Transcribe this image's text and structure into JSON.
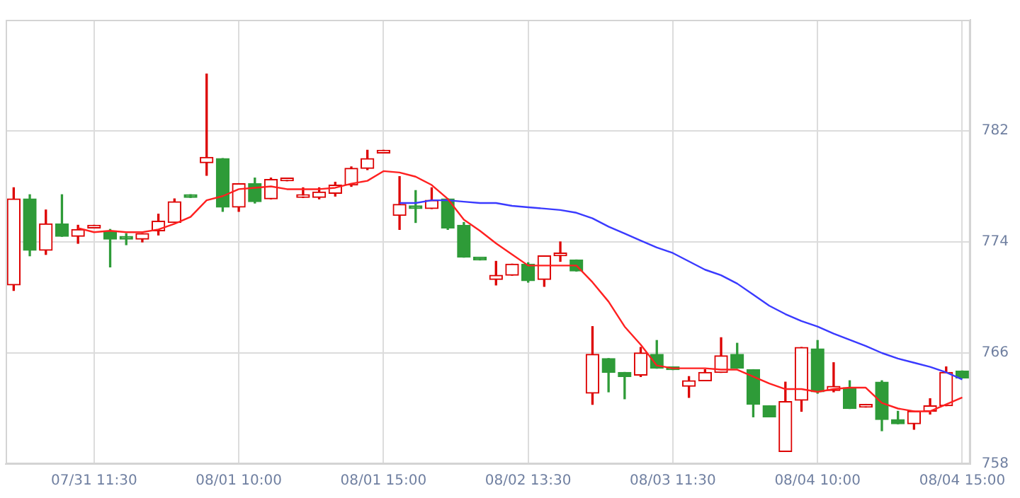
{
  "chart_data": {
    "type": "candlestick",
    "categories": [
      null,
      null,
      null,
      null,
      null,
      "07/31 11:30",
      null,
      null,
      null,
      null,
      null,
      null,
      null,
      null,
      "08/01 10:00",
      null,
      null,
      null,
      null,
      null,
      null,
      null,
      null,
      "08/01 15:00",
      null,
      null,
      null,
      null,
      null,
      null,
      null,
      null,
      "08/02 13:30",
      null,
      null,
      null,
      null,
      null,
      null,
      null,
      null,
      "08/03 11:30",
      null,
      null,
      null,
      null,
      null,
      null,
      null,
      null,
      "08/04 10:00",
      null,
      null,
      null,
      null,
      null,
      null,
      null,
      null,
      "08/04 15:00"
    ],
    "ohlc": [
      [
        770.9,
        777.9,
        770.5,
        777.1
      ],
      [
        777.1,
        777.4,
        773.0,
        773.4
      ],
      [
        773.4,
        776.3,
        773.1,
        775.3
      ],
      [
        775.3,
        777.4,
        774.4,
        774.4
      ],
      [
        774.4,
        775.2,
        773.9,
        774.9
      ],
      [
        775.0,
        775.2,
        775.0,
        775.1
      ],
      [
        774.8,
        774.9,
        772.2,
        774.2
      ],
      [
        774.4,
        774.6,
        773.8,
        774.2
      ],
      [
        774.2,
        774.6,
        774.0,
        774.6
      ],
      [
        774.8,
        776.0,
        774.5,
        775.5
      ],
      [
        775.4,
        777.1,
        775.4,
        776.9
      ],
      [
        777.4,
        777.4,
        777.2,
        777.2
      ],
      [
        779.7,
        786.1,
        778.8,
        780.1
      ],
      [
        780.0,
        780.0,
        776.2,
        776.5
      ],
      [
        776.5,
        778.2,
        776.2,
        778.2
      ],
      [
        778.2,
        778.6,
        776.8,
        776.9
      ],
      [
        777.1,
        778.6,
        777.1,
        778.5
      ],
      [
        778.4,
        778.5,
        778.4,
        778.5
      ],
      [
        777.2,
        777.9,
        777.2,
        777.3
      ],
      [
        777.2,
        777.9,
        777.1,
        777.6
      ],
      [
        777.5,
        778.3,
        777.3,
        778.1
      ],
      [
        778.1,
        779.4,
        778.0,
        779.3
      ],
      [
        779.3,
        780.6,
        779.2,
        780.0
      ],
      [
        780.4,
        780.6,
        780.4,
        780.6
      ],
      [
        775.9,
        778.7,
        774.9,
        776.7
      ],
      [
        776.6,
        777.7,
        775.4,
        776.4
      ],
      [
        776.4,
        777.9,
        776.4,
        777.0
      ],
      [
        777.1,
        777.1,
        774.9,
        775.0
      ],
      [
        775.2,
        775.4,
        772.9,
        772.9
      ],
      [
        772.8,
        772.8,
        772.7,
        772.7
      ],
      [
        771.3,
        772.6,
        770.9,
        771.6
      ],
      [
        771.6,
        772.4,
        771.6,
        772.4
      ],
      [
        772.4,
        772.5,
        771.1,
        771.2
      ],
      [
        771.3,
        773.0,
        770.8,
        773.0
      ],
      [
        773.0,
        774.0,
        772.6,
        773.1
      ],
      [
        772.7,
        772.7,
        771.9,
        771.9
      ],
      [
        763.1,
        767.9,
        762.3,
        765.9
      ],
      [
        765.6,
        765.6,
        763.2,
        764.6
      ],
      [
        764.6,
        764.6,
        762.7,
        764.3
      ],
      [
        764.4,
        766.4,
        764.3,
        766.0
      ],
      [
        765.9,
        766.9,
        764.9,
        764.9
      ],
      [
        764.9,
        765.0,
        764.8,
        764.8
      ],
      [
        763.6,
        764.3,
        762.8,
        764.0
      ],
      [
        764.0,
        764.8,
        764.0,
        764.6
      ],
      [
        764.6,
        767.1,
        764.6,
        765.8
      ],
      [
        765.9,
        766.7,
        764.9,
        764.9
      ],
      [
        764.8,
        764.8,
        761.4,
        762.3
      ],
      [
        762.2,
        762.2,
        761.4,
        761.4
      ],
      [
        758.9,
        763.9,
        758.9,
        762.5
      ],
      [
        762.6,
        766.4,
        761.8,
        766.4
      ],
      [
        766.3,
        766.9,
        763.1,
        763.2
      ],
      [
        763.3,
        765.3,
        763.2,
        763.6
      ],
      [
        763.5,
        764.0,
        762.0,
        762.0
      ],
      [
        762.1,
        762.3,
        762.1,
        762.3
      ],
      [
        763.9,
        764.0,
        760.4,
        761.2
      ],
      [
        761.2,
        761.8,
        760.9,
        760.9
      ],
      [
        760.9,
        761.8,
        760.5,
        761.8
      ],
      [
        761.8,
        762.7,
        761.6,
        762.2
      ],
      [
        762.2,
        765.0,
        762.2,
        764.6
      ],
      [
        764.7,
        764.7,
        764.2,
        764.2
      ]
    ],
    "colors": [
      "#dd0000",
      "#2e9b38",
      "#dd0000",
      "#2e9b38",
      "#dd0000",
      "#dd0000",
      "#2e9b38",
      "#2e9b38",
      "#dd0000",
      "#dd0000",
      "#dd0000",
      "#2e9b38",
      "#dd0000",
      "#2e9b38",
      "#dd0000",
      "#2e9b38",
      "#dd0000",
      "#dd0000",
      "#dd0000",
      "#dd0000",
      "#dd0000",
      "#dd0000",
      "#dd0000",
      "#dd0000",
      "#dd0000",
      "#2e9b38",
      "#dd0000",
      "#2e9b38",
      "#2e9b38",
      "#2e9b38",
      "#dd0000",
      "#dd0000",
      "#2e9b38",
      "#dd0000",
      "#dd0000",
      "#2e9b38",
      "#dd0000",
      "#2e9b38",
      "#2e9b38",
      "#dd0000",
      "#2e9b38",
      "#2e9b38",
      "#dd0000",
      "#dd0000",
      "#dd0000",
      "#2e9b38",
      "#2e9b38",
      "#2e9b38",
      "#dd0000",
      "#dd0000",
      "#2e9b38",
      "#dd0000",
      "#2e9b38",
      "#dd0000",
      "#2e9b38",
      "#2e9b38",
      "#dd0000",
      "#dd0000",
      "#dd0000",
      "#2e9b38"
    ],
    "series": [
      {
        "type": "line",
        "color": "#ff2020",
        "values": [
          null,
          null,
          null,
          null,
          775.0,
          774.7,
          774.8,
          774.7,
          774.7,
          774.9,
          775.3,
          775.8,
          777.0,
          777.3,
          777.8,
          777.9,
          778.0,
          777.8,
          777.8,
          777.8,
          777.9,
          778.2,
          778.4,
          779.1,
          779.0,
          778.7,
          778.1,
          777.1,
          775.6,
          774.8,
          773.9,
          773.1,
          772.3,
          772.3,
          772.3,
          772.3,
          771.1,
          769.7,
          767.9,
          766.6,
          765.1,
          764.9,
          764.9,
          764.9,
          764.8,
          764.8,
          764.3,
          763.8,
          763.4,
          763.4,
          763.2,
          763.4,
          763.5,
          763.5,
          762.4,
          762.0,
          761.8,
          761.8,
          762.3,
          762.8
        ]
      },
      {
        "type": "line",
        "color": "#3a3aff",
        "values": [
          null,
          null,
          null,
          null,
          null,
          null,
          null,
          null,
          null,
          null,
          null,
          null,
          null,
          null,
          null,
          null,
          null,
          null,
          null,
          null,
          null,
          null,
          null,
          null,
          776.8,
          776.8,
          777.0,
          777.0,
          776.9,
          776.8,
          776.8,
          776.6,
          776.5,
          776.4,
          776.3,
          776.1,
          775.7,
          775.1,
          774.6,
          774.1,
          773.6,
          773.2,
          772.6,
          772.0,
          771.6,
          771.0,
          770.2,
          769.4,
          768.8,
          768.3,
          767.9,
          767.4,
          766.95,
          766.5,
          766.0,
          765.6,
          765.3,
          765.0,
          764.6,
          764.1
        ]
      }
    ],
    "ylim": [
      758,
      790
    ],
    "yticks": [
      758,
      766,
      774,
      782
    ],
    "grid": true,
    "legend": false,
    "marker": "none",
    "line_style": "solid"
  }
}
